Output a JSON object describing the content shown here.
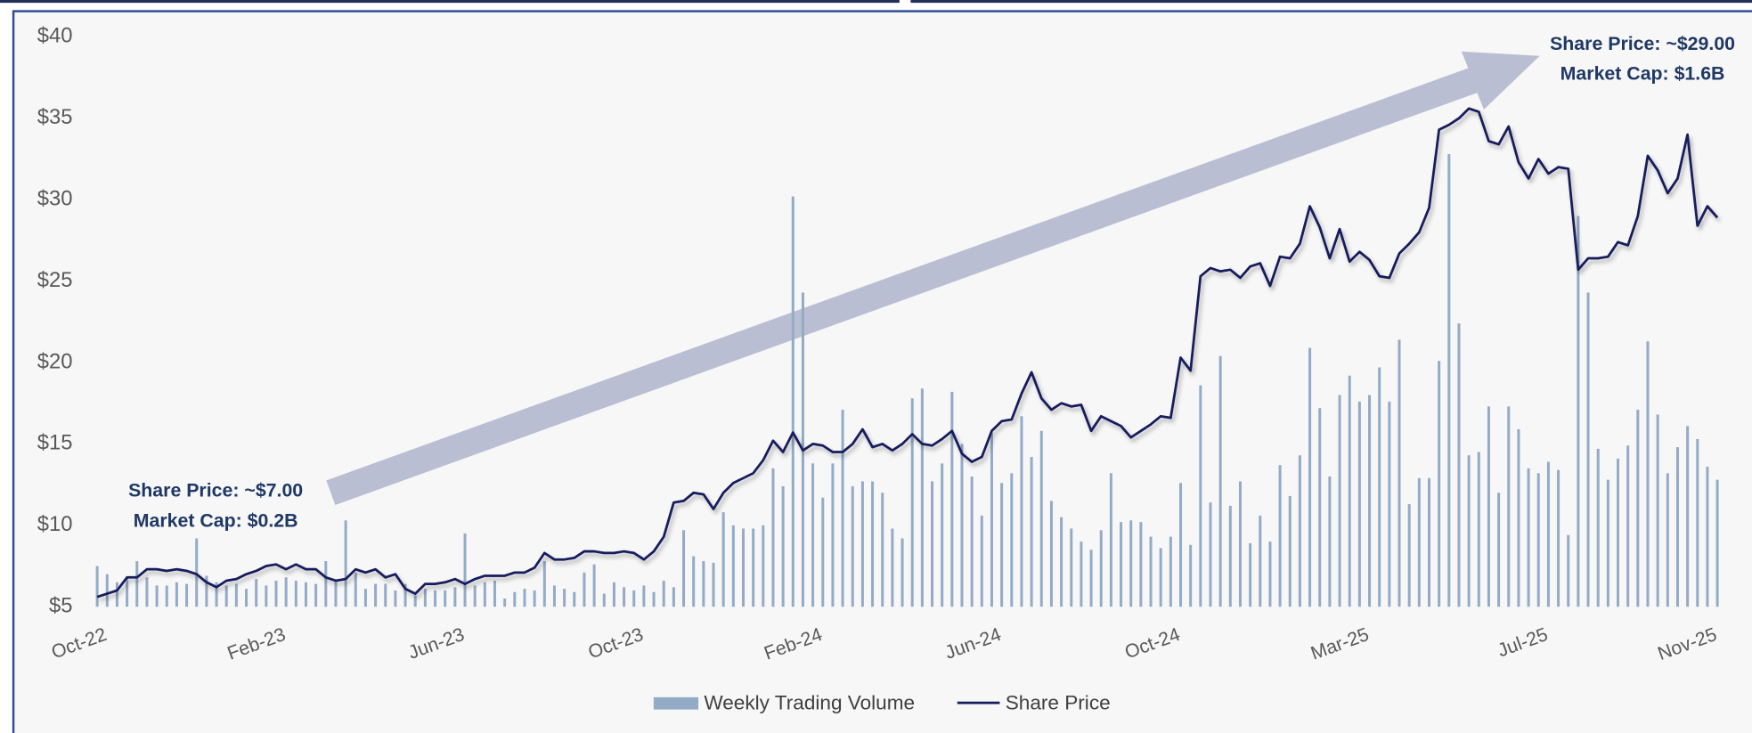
{
  "chart_data": {
    "type": "combo",
    "annotations": [
      {
        "lines": [
          "Share Price: ~$7.00",
          "Market Cap: $0.2B"
        ]
      },
      {
        "lines": [
          "Share Price: ~$29.00",
          "Market Cap: $1.6B"
        ]
      }
    ],
    "categories": [
      "Oct-22",
      null,
      null,
      null,
      null,
      null,
      null,
      null,
      null,
      null,
      null,
      null,
      null,
      null,
      null,
      null,
      null,
      null,
      "Feb-23",
      null,
      null,
      null,
      null,
      null,
      null,
      null,
      null,
      null,
      null,
      null,
      null,
      null,
      null,
      null,
      null,
      null,
      "Jun-23",
      null,
      null,
      null,
      null,
      null,
      null,
      null,
      null,
      null,
      null,
      null,
      null,
      null,
      null,
      null,
      null,
      null,
      "Oct-23",
      null,
      null,
      null,
      null,
      null,
      null,
      null,
      null,
      null,
      null,
      null,
      null,
      null,
      null,
      null,
      null,
      null,
      "Feb-24",
      null,
      null,
      null,
      null,
      null,
      null,
      null,
      null,
      null,
      null,
      null,
      null,
      null,
      null,
      null,
      null,
      null,
      "Jun-24",
      null,
      null,
      null,
      null,
      null,
      null,
      null,
      null,
      null,
      null,
      null,
      null,
      null,
      null,
      null,
      null,
      null,
      "Oct-24",
      null,
      null,
      null,
      null,
      null,
      null,
      null,
      null,
      null,
      null,
      null,
      null,
      null,
      null,
      null,
      null,
      null,
      null,
      "Mar-25",
      null,
      null,
      null,
      null,
      null,
      null,
      null,
      null,
      null,
      null,
      null,
      null,
      null,
      null,
      null,
      null,
      null,
      "Jul-25",
      null,
      null,
      null,
      null,
      null,
      null,
      null,
      null,
      null,
      null,
      null,
      null,
      null,
      null,
      null,
      null,
      "Nov-25",
      null
    ],
    "series": [
      {
        "name": "Weekly Trading Volume",
        "type": "bar",
        "color": "#93abc7",
        "values": [
          7.5,
          7.0,
          6.5,
          6.8,
          7.8,
          6.8,
          6.3,
          6.3,
          6.5,
          6.4,
          9.2,
          6.9,
          6.5,
          6.3,
          6.4,
          6.1,
          6.7,
          6.3,
          6.6,
          6.8,
          6.6,
          6.5,
          6.4,
          7.8,
          6.6,
          10.3,
          7.1,
          6.1,
          6.4,
          6.4,
          6.0,
          6.4,
          5.7,
          6.1,
          6.0,
          6.0,
          6.2,
          9.5,
          6.3,
          6.5,
          6.6,
          5.5,
          5.9,
          6.1,
          6.0,
          7.8,
          6.3,
          6.1,
          5.9,
          7.1,
          7.6,
          5.8,
          6.5,
          6.2,
          6.0,
          6.3,
          5.9,
          6.6,
          6.2,
          9.7,
          8.1,
          7.8,
          7.7,
          10.8,
          10.0,
          9.8,
          9.8,
          10.0,
          13.5,
          12.4,
          30.2,
          24.3,
          13.8,
          11.7,
          13.8,
          17.1,
          12.4,
          12.7,
          12.7,
          12.0,
          9.8,
          9.2,
          17.8,
          18.4,
          12.7,
          13.8,
          18.2,
          15.0,
          13.0,
          10.6,
          15.7,
          12.6,
          13.2,
          16.7,
          14.2,
          15.8,
          11.5,
          10.5,
          9.8,
          9.0,
          8.5,
          9.7,
          13.2,
          10.2,
          10.3,
          10.2,
          9.3,
          8.6,
          9.3,
          12.6,
          8.8,
          18.6,
          11.4,
          20.4,
          11.2,
          12.7,
          8.9,
          10.6,
          9.0,
          13.7,
          11.8,
          14.3,
          20.9,
          17.2,
          13.0,
          18.0,
          19.2,
          17.6,
          18.0,
          19.7,
          17.6,
          21.4,
          11.3,
          12.9,
          12.9,
          20.1,
          32.8,
          22.4,
          14.3,
          14.5,
          17.3,
          12.0,
          17.3,
          15.9,
          13.5,
          13.2,
          13.9,
          13.4,
          9.4,
          29.0,
          24.3,
          14.7,
          12.8,
          14.1,
          14.9,
          17.1,
          21.3,
          16.8,
          13.2,
          14.8,
          16.1,
          15.3,
          13.6,
          12.8
        ]
      },
      {
        "name": "Share Price",
        "type": "line",
        "color": "#141a5c",
        "values": [
          5.6,
          5.8,
          6.0,
          6.8,
          6.8,
          7.3,
          7.3,
          7.2,
          7.3,
          7.2,
          7.0,
          6.5,
          6.2,
          6.6,
          6.7,
          7.0,
          7.2,
          7.5,
          7.6,
          7.3,
          7.6,
          7.3,
          7.3,
          6.8,
          6.6,
          6.7,
          7.3,
          7.1,
          7.3,
          6.8,
          7.0,
          6.1,
          5.8,
          6.4,
          6.4,
          6.5,
          6.7,
          6.4,
          6.7,
          6.9,
          6.9,
          6.9,
          7.1,
          7.1,
          7.4,
          8.3,
          7.9,
          7.9,
          8.0,
          8.4,
          8.4,
          8.3,
          8.3,
          8.4,
          8.3,
          7.9,
          8.4,
          9.3,
          11.4,
          11.5,
          12.0,
          11.9,
          11.0,
          12.0,
          12.6,
          12.9,
          13.2,
          14.0,
          15.2,
          14.5,
          15.7,
          14.6,
          15.0,
          14.9,
          14.5,
          14.5,
          15.0,
          15.9,
          14.8,
          15.0,
          14.6,
          15.0,
          15.6,
          15.0,
          14.9,
          15.3,
          15.8,
          14.4,
          13.9,
          14.2,
          15.8,
          16.4,
          16.5,
          18.1,
          19.4,
          17.8,
          17.1,
          17.5,
          17.3,
          17.4,
          15.8,
          16.7,
          16.4,
          16.1,
          15.4,
          15.8,
          16.2,
          16.7,
          16.6,
          20.3,
          19.5,
          25.3,
          25.8,
          25.6,
          25.7,
          25.2,
          25.9,
          26.1,
          24.7,
          26.5,
          26.4,
          27.3,
          29.6,
          28.3,
          26.4,
          28.2,
          26.2,
          26.8,
          26.3,
          25.3,
          25.2,
          26.7,
          27.3,
          28.0,
          29.5,
          34.3,
          34.6,
          35.0,
          35.6,
          35.4,
          33.6,
          33.4,
          34.5,
          32.3,
          31.3,
          32.5,
          31.6,
          32.0,
          31.9,
          25.7,
          26.4,
          26.4,
          26.5,
          27.4,
          27.2,
          29.0,
          32.7,
          31.8,
          30.4,
          31.3,
          34.0,
          28.4,
          29.6,
          28.9
        ]
      }
    ],
    "ylim": [
      5,
      40
    ],
    "yticks": [
      {
        "value": 5,
        "label": "$5"
      },
      {
        "value": 10,
        "label": "$10"
      },
      {
        "value": 15,
        "label": "$15"
      },
      {
        "value": 20,
        "label": "$20"
      },
      {
        "value": 25,
        "label": "$25"
      },
      {
        "value": 30,
        "label": "$30"
      },
      {
        "value": 35,
        "label": "$35"
      },
      {
        "value": 40,
        "label": "$40"
      }
    ],
    "grid": false,
    "legend": "bottom"
  }
}
